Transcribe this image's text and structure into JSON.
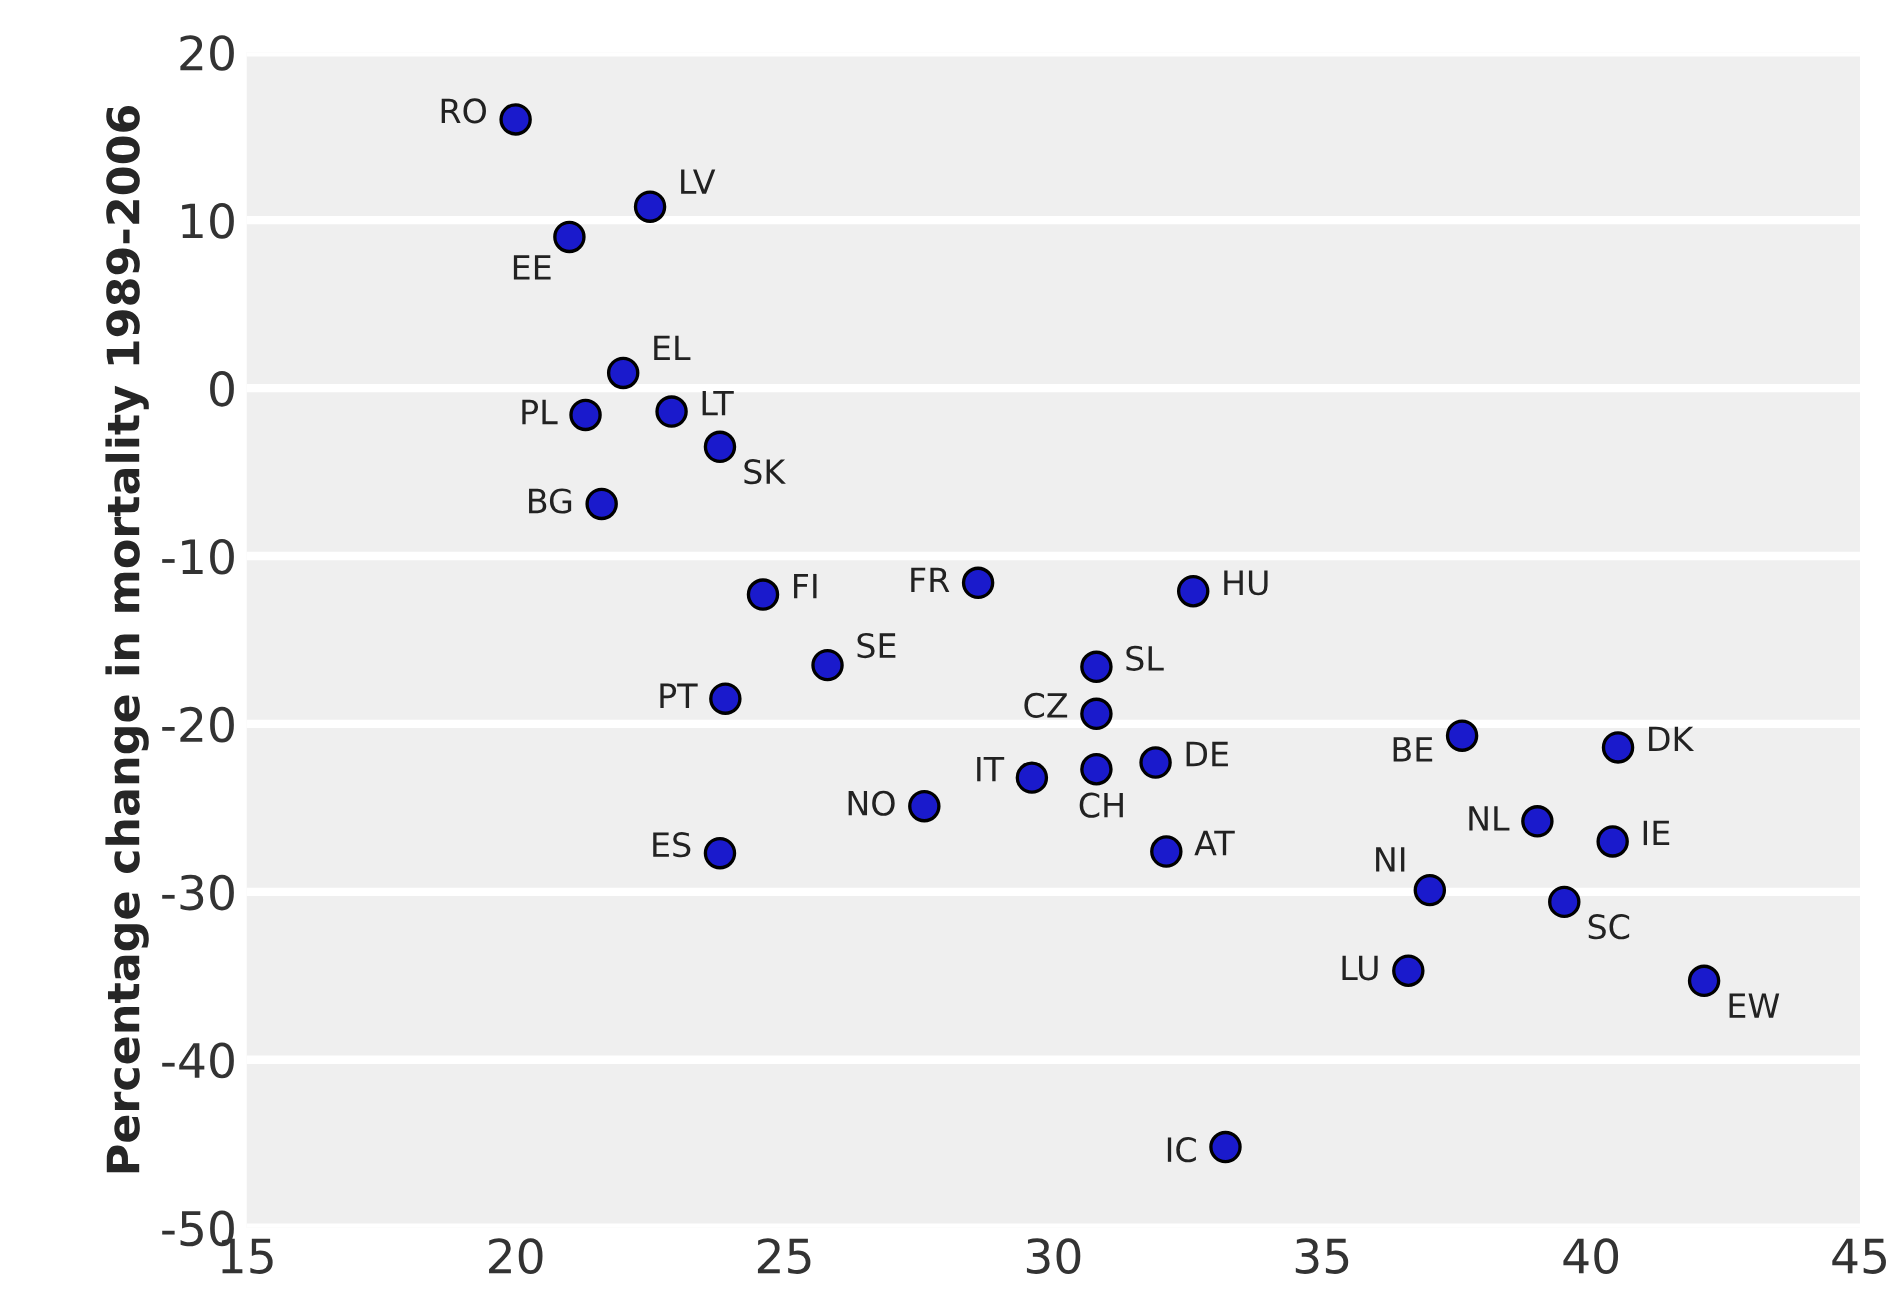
{
  "chart_data": {
    "type": "scatter",
    "ylabel": "Percentage change in mortality 1989-2006",
    "x": [
      20.0,
      22.5,
      21.0,
      22.0,
      21.3,
      22.9,
      23.8,
      21.6,
      24.6,
      25.8,
      23.9,
      27.6,
      23.8,
      28.6,
      32.6,
      30.8,
      30.8,
      29.6,
      30.8,
      31.9,
      32.1,
      37.6,
      40.5,
      39.0,
      40.4,
      37.0,
      39.5,
      36.6,
      42.1,
      33.2
    ],
    "series": [
      {
        "color": "#1a1acc",
        "values": [
          16.0,
          10.8,
          9.0,
          0.9,
          -1.6,
          -1.4,
          -3.5,
          -6.9,
          -12.3,
          -16.5,
          -18.5,
          -24.9,
          -27.7,
          -11.6,
          -12.1,
          -16.6,
          -19.4,
          -23.2,
          -22.7,
          -22.3,
          -27.6,
          -20.7,
          -21.4,
          -25.8,
          -27.0,
          -29.9,
          -30.6,
          -34.7,
          -35.3,
          -45.2
        ]
      }
    ],
    "annotations": [
      {
        "text": "RO",
        "x": 20.0,
        "y": 16.0
      },
      {
        "text": "LV",
        "x": 22.5,
        "y": 10.8
      },
      {
        "text": "EE",
        "x": 21.0,
        "y": 9.0
      },
      {
        "text": "EL",
        "x": 22.0,
        "y": 0.9
      },
      {
        "text": "PL",
        "x": 21.3,
        "y": -1.6
      },
      {
        "text": "LT",
        "x": 22.9,
        "y": -1.4
      },
      {
        "text": "SK",
        "x": 23.8,
        "y": -3.5
      },
      {
        "text": "BG",
        "x": 21.6,
        "y": -6.9
      },
      {
        "text": "FI",
        "x": 24.6,
        "y": -12.3
      },
      {
        "text": "SE",
        "x": 25.8,
        "y": -16.5
      },
      {
        "text": "PT",
        "x": 23.9,
        "y": -18.5
      },
      {
        "text": "NO",
        "x": 27.6,
        "y": -24.9
      },
      {
        "text": "ES",
        "x": 23.8,
        "y": -27.7
      },
      {
        "text": "FR",
        "x": 28.6,
        "y": -11.6
      },
      {
        "text": "HU",
        "x": 32.6,
        "y": -12.1
      },
      {
        "text": "SL",
        "x": 30.8,
        "y": -16.6
      },
      {
        "text": "CZ",
        "x": 30.8,
        "y": -19.4
      },
      {
        "text": "IT",
        "x": 29.6,
        "y": -23.2
      },
      {
        "text": "CH",
        "x": 30.8,
        "y": -22.7
      },
      {
        "text": "DE",
        "x": 31.9,
        "y": -22.3
      },
      {
        "text": "AT",
        "x": 32.1,
        "y": -27.6
      },
      {
        "text": "BE",
        "x": 37.6,
        "y": -20.7
      },
      {
        "text": "DK",
        "x": 40.5,
        "y": -21.4
      },
      {
        "text": "NL",
        "x": 39.0,
        "y": -25.8
      },
      {
        "text": "IE",
        "x": 40.4,
        "y": -27.0
      },
      {
        "text": "NI",
        "x": 37.0,
        "y": -29.9
      },
      {
        "text": "SC",
        "x": 39.5,
        "y": -30.6
      },
      {
        "text": "LU",
        "x": 36.6,
        "y": -34.7
      },
      {
        "text": "EW",
        "x": 42.1,
        "y": -35.3
      },
      {
        "text": "IC",
        "x": 33.2,
        "y": -45.2
      }
    ],
    "xlim": [
      15,
      45
    ],
    "xticks": [
      15,
      20,
      25,
      30,
      35,
      40,
      45
    ],
    "ylim": [
      -50,
      20
    ],
    "yticks": [
      -50,
      -40,
      -30,
      -20,
      -10,
      0,
      10,
      20
    ],
    "grid": "y",
    "marker": "circle"
  }
}
